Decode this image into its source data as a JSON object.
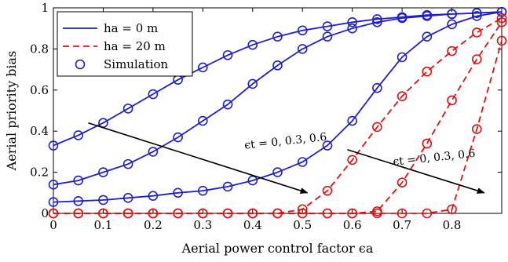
{
  "chart_data": {
    "type": "line",
    "xlabel": "Aerial power control factor ϵa",
    "ylabel": "Aerial priority bias",
    "xlim": [
      0,
      0.9
    ],
    "ylim": [
      0,
      1
    ],
    "grid": false,
    "legend_position": "top-left",
    "x_ticks": [
      0,
      0.1,
      0.2,
      0.3,
      0.4,
      0.5,
      0.6,
      0.7,
      0.8
    ],
    "x_tick_labels": [
      "0",
      "0.1",
      "0.2",
      "0.3",
      "0.4",
      "0.5",
      "0.6",
      "0.7",
      "0.8"
    ],
    "y_ticks": [
      0,
      0.2,
      0.4,
      0.6,
      0.8,
      1
    ],
    "y_tick_labels": [
      "0",
      "0.2",
      "0.4",
      "0.6",
      "0.8",
      "1"
    ],
    "legend": [
      {
        "label": "ha = 0 m",
        "style": "solid-line"
      },
      {
        "label": "ha = 20 m",
        "style": "dashed-line"
      },
      {
        "label": "Simulation",
        "style": "circle-marker"
      }
    ],
    "annotations": [
      {
        "text": "ϵt = 0,  0.3,  0.6",
        "group": "ha = 0 m"
      },
      {
        "text": "ϵt = 0,  0.3,  0.6",
        "group": "ha = 20 m"
      }
    ],
    "series": [
      {
        "group": "ha = 0 m",
        "eps_t": 0,
        "color": "#1f1fd0",
        "dash": "solid",
        "x": [
          0,
          0.05,
          0.1,
          0.15,
          0.2,
          0.25,
          0.3,
          0.35,
          0.4,
          0.45,
          0.5,
          0.55,
          0.6,
          0.65,
          0.7,
          0.75,
          0.8,
          0.85,
          0.9
        ],
        "y": [
          0.33,
          0.38,
          0.44,
          0.51,
          0.58,
          0.65,
          0.71,
          0.77,
          0.82,
          0.86,
          0.89,
          0.91,
          0.93,
          0.945,
          0.955,
          0.965,
          0.97,
          0.975,
          0.98
        ]
      },
      {
        "group": "ha = 0 m",
        "eps_t": 0.3,
        "color": "#1f1fd0",
        "dash": "solid",
        "x": [
          0,
          0.05,
          0.1,
          0.15,
          0.2,
          0.25,
          0.3,
          0.35,
          0.4,
          0.45,
          0.5,
          0.55,
          0.6,
          0.65,
          0.7,
          0.75,
          0.8,
          0.85,
          0.9
        ],
        "y": [
          0.14,
          0.16,
          0.2,
          0.24,
          0.3,
          0.37,
          0.45,
          0.53,
          0.63,
          0.72,
          0.8,
          0.86,
          0.9,
          0.93,
          0.95,
          0.96,
          0.97,
          0.975,
          0.98
        ]
      },
      {
        "group": "ha = 0 m",
        "eps_t": 0.6,
        "color": "#1f1fd0",
        "dash": "solid",
        "x": [
          0,
          0.05,
          0.1,
          0.15,
          0.2,
          0.25,
          0.3,
          0.35,
          0.4,
          0.45,
          0.5,
          0.55,
          0.6,
          0.65,
          0.7,
          0.75,
          0.8,
          0.85,
          0.9
        ],
        "y": [
          0.055,
          0.06,
          0.065,
          0.075,
          0.085,
          0.1,
          0.11,
          0.13,
          0.16,
          0.2,
          0.25,
          0.33,
          0.45,
          0.61,
          0.76,
          0.86,
          0.92,
          0.96,
          0.98
        ]
      },
      {
        "group": "ha = 20 m",
        "eps_t": 0,
        "color": "#e01010",
        "dash": "dashed",
        "x": [
          0,
          0.05,
          0.1,
          0.15,
          0.2,
          0.25,
          0.3,
          0.35,
          0.4,
          0.45,
          0.5,
          0.55,
          0.6,
          0.65,
          0.7,
          0.75,
          0.8,
          0.85,
          0.9
        ],
        "y": [
          0,
          0,
          0,
          0,
          0,
          0,
          0,
          0,
          0,
          0,
          0.02,
          0.11,
          0.26,
          0.42,
          0.57,
          0.69,
          0.79,
          0.88,
          0.95
        ]
      },
      {
        "group": "ha = 20 m",
        "eps_t": 0.3,
        "color": "#e01010",
        "dash": "dashed",
        "x": [
          0,
          0.05,
          0.1,
          0.15,
          0.2,
          0.25,
          0.3,
          0.35,
          0.4,
          0.45,
          0.5,
          0.55,
          0.6,
          0.65,
          0.7,
          0.75,
          0.8,
          0.85,
          0.9
        ],
        "y": [
          0,
          0,
          0,
          0,
          0,
          0,
          0,
          0,
          0,
          0,
          0,
          0,
          0,
          0.01,
          0.15,
          0.34,
          0.55,
          0.75,
          0.93
        ]
      },
      {
        "group": "ha = 20 m",
        "eps_t": 0.6,
        "color": "#e01010",
        "dash": "dashed",
        "x": [
          0,
          0.05,
          0.1,
          0.15,
          0.2,
          0.25,
          0.3,
          0.35,
          0.4,
          0.45,
          0.5,
          0.55,
          0.6,
          0.65,
          0.7,
          0.75,
          0.8,
          0.85,
          0.9
        ],
        "y": [
          0,
          0,
          0,
          0,
          0,
          0,
          0,
          0,
          0,
          0,
          0,
          0,
          0,
          0,
          0,
          0,
          0.02,
          0.41,
          0.84
        ]
      }
    ]
  }
}
